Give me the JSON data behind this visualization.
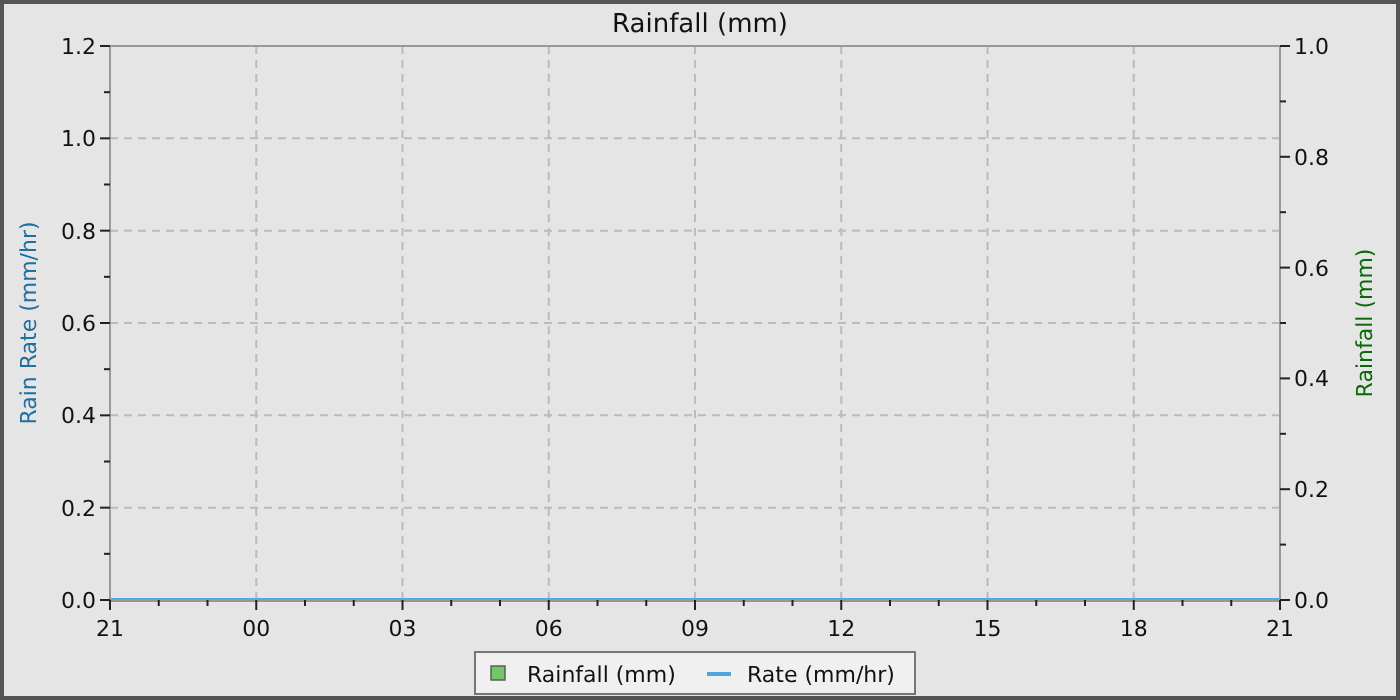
{
  "chart_data": {
    "type": "line",
    "title": "Rainfall (mm)",
    "ylabel": "Rain Rate (mm/hr)",
    "y2label": "Rainfall (mm)",
    "categories": [
      "21",
      null,
      null,
      "00",
      null,
      null,
      "03",
      null,
      null,
      "06",
      null,
      null,
      "09",
      null,
      null,
      "12",
      null,
      null,
      "15",
      null,
      null,
      "18",
      null,
      null,
      "21"
    ],
    "ylim": [
      0,
      1.2
    ],
    "yticks": [
      {
        "value": 0,
        "label": "0.0"
      },
      {
        "value": 0.1,
        "label": null
      },
      {
        "value": 0.2,
        "label": "0.2"
      },
      {
        "value": 0.3,
        "label": null
      },
      {
        "value": 0.4,
        "label": "0.4"
      },
      {
        "value": 0.5,
        "label": null
      },
      {
        "value": 0.6,
        "label": "0.6"
      },
      {
        "value": 0.7,
        "label": null
      },
      {
        "value": 0.8,
        "label": "0.8"
      },
      {
        "value": 0.9,
        "label": null
      },
      {
        "value": 1.0,
        "label": "1.0"
      },
      {
        "value": 1.1,
        "label": null
      },
      {
        "value": 1.2,
        "label": "1.2"
      }
    ],
    "y2lim": [
      0,
      1.0
    ],
    "y2ticks": [
      {
        "value": 0,
        "label": "0.0"
      },
      {
        "value": 0.1,
        "label": null
      },
      {
        "value": 0.2,
        "label": "0.2"
      },
      {
        "value": 0.3,
        "label": null
      },
      {
        "value": 0.4,
        "label": "0.4"
      },
      {
        "value": 0.5,
        "label": null
      },
      {
        "value": 0.6,
        "label": "0.6"
      },
      {
        "value": 0.7,
        "label": null
      },
      {
        "value": 0.8,
        "label": "0.8"
      },
      {
        "value": 0.9,
        "label": null
      },
      {
        "value": 1.0,
        "label": "1.0"
      }
    ],
    "grid": true,
    "legend": "bottom",
    "line_style": "solid",
    "marker": "none",
    "series": [
      {
        "name": "Rainfall (mm)",
        "type": "bar",
        "color": "#72c868",
        "values": [
          null,
          null,
          null,
          null,
          null,
          null,
          null,
          null,
          null,
          null,
          null,
          null,
          null,
          null,
          null,
          null,
          null,
          null,
          null,
          null,
          null,
          null,
          null,
          null,
          null
        ]
      },
      {
        "name": "Rate (mm/hr)",
        "color": "#4fa8d8",
        "values": [
          0,
          0,
          0,
          0,
          0,
          0,
          0,
          0,
          0,
          0,
          0,
          0,
          0,
          0,
          0,
          0,
          0,
          0,
          0,
          0,
          0,
          0,
          0,
          0,
          0
        ]
      }
    ]
  }
}
